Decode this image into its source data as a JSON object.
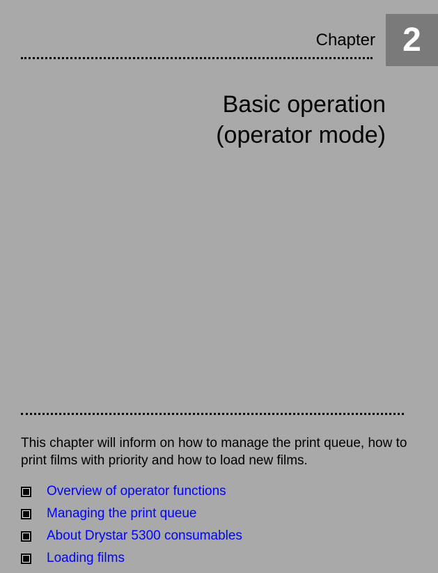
{
  "chapter": {
    "label": "Chapter",
    "number": "2",
    "title_line1": "Basic operation",
    "title_line2": "(operator mode)"
  },
  "intro": "This chapter will inform on how to manage the print queue, how to print films with priority and how to load new films.",
  "toc": {
    "items": [
      {
        "label": "Overview of operator functions"
      },
      {
        "label": "Managing the print queue"
      },
      {
        "label": "About Drystar 5300 consumables"
      },
      {
        "label": "Loading films"
      }
    ]
  },
  "colors": {
    "page_bg": "#a9a9a9",
    "number_box_bg": "#7a7a7a",
    "number_text": "#ffffff",
    "body_text": "#000000",
    "link_text": "#0000ff"
  }
}
